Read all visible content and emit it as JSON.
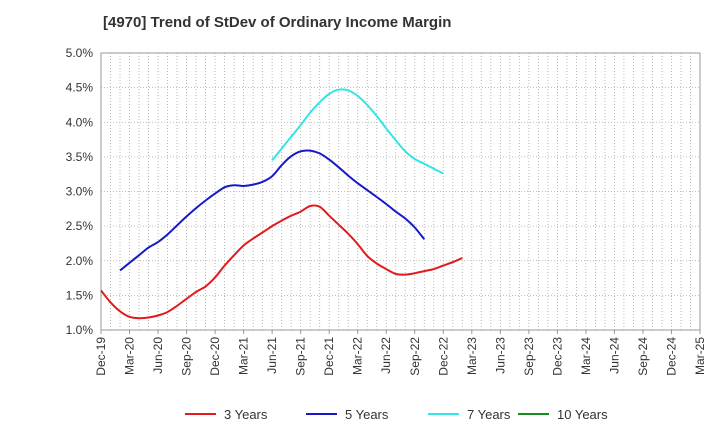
{
  "chart_data": {
    "type": "line",
    "title": "[4970]  Trend of StDev of Ordinary Income Margin",
    "xlabel": "",
    "ylabel": "",
    "ylim": [
      1.0,
      5.0
    ],
    "y_ticks": [
      "1.0%",
      "1.5%",
      "2.0%",
      "2.5%",
      "3.0%",
      "3.5%",
      "4.0%",
      "4.5%",
      "5.0%"
    ],
    "x_ticks": [
      "Dec-19",
      "Mar-20",
      "Jun-20",
      "Sep-20",
      "Dec-20",
      "Mar-21",
      "Jun-21",
      "Sep-21",
      "Dec-21",
      "Mar-22",
      "Jun-22",
      "Sep-22",
      "Dec-22",
      "Mar-23",
      "Jun-23",
      "Sep-23",
      "Dec-23",
      "Mar-24",
      "Jun-24",
      "Sep-24",
      "Dec-24",
      "Mar-25"
    ],
    "grid": true,
    "legend_position": "bottom",
    "series": [
      {
        "name": "3 Years",
        "color": "#e31a1c",
        "start_index": 0,
        "values": [
          1.57,
          1.4,
          1.27,
          1.19,
          1.17,
          1.18,
          1.21,
          1.26,
          1.35,
          1.45,
          1.55,
          1.63,
          1.76,
          1.93,
          2.08,
          2.22,
          2.32,
          2.41,
          2.5,
          2.58,
          2.65,
          2.71,
          2.79,
          2.78,
          2.65,
          2.52,
          2.39,
          2.24,
          2.07,
          1.96,
          1.88,
          1.81,
          1.8,
          1.82,
          1.85,
          1.88,
          1.93,
          1.98,
          2.04
        ]
      },
      {
        "name": "5 Years",
        "color": "#1818c8",
        "start_index": 2,
        "values": [
          1.86,
          1.97,
          2.08,
          2.19,
          2.27,
          2.38,
          2.51,
          2.64,
          2.76,
          2.87,
          2.97,
          3.06,
          3.09,
          3.08,
          3.1,
          3.14,
          3.22,
          3.38,
          3.51,
          3.58,
          3.59,
          3.55,
          3.46,
          3.35,
          3.23,
          3.12,
          3.02,
          2.92,
          2.82,
          2.71,
          2.61,
          2.48,
          2.31
        ]
      },
      {
        "name": "7 Years",
        "color": "#33e5e5",
        "start_index": 18,
        "values": [
          3.45,
          3.62,
          3.79,
          3.96,
          4.14,
          4.29,
          4.41,
          4.47,
          4.46,
          4.38,
          4.25,
          4.09,
          3.91,
          3.74,
          3.58,
          3.47,
          3.4,
          3.33,
          3.26
        ]
      },
      {
        "name": "10 Years",
        "color": "#1a8c1a",
        "start_index": 0,
        "values": []
      }
    ]
  }
}
